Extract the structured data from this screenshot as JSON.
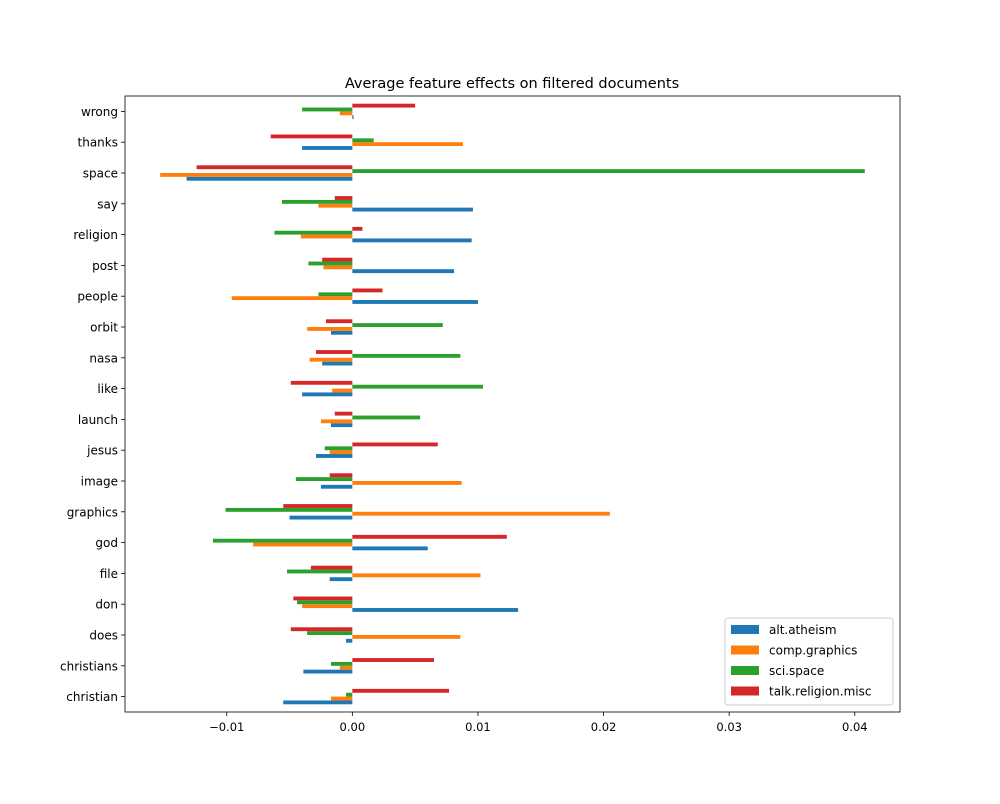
{
  "chart_data": {
    "type": "bar",
    "orientation": "horizontal",
    "title": "Average feature effects on filtered documents",
    "xlabel": "",
    "ylabel": "",
    "xlim": [
      -0.0181,
      0.0436
    ],
    "xticks": [
      -0.01,
      0.0,
      0.01,
      0.02,
      0.03,
      0.04
    ],
    "xtick_labels": [
      "−0.01",
      "0.00",
      "0.01",
      "0.02",
      "0.03",
      "0.04"
    ],
    "grid": false,
    "legend_position": "lower-right",
    "categories": [
      "christian",
      "christians",
      "does",
      "don",
      "file",
      "god",
      "graphics",
      "image",
      "jesus",
      "launch",
      "like",
      "nasa",
      "orbit",
      "people",
      "post",
      "religion",
      "say",
      "space",
      "thanks",
      "wrong"
    ],
    "series": [
      {
        "name": "alt.atheism",
        "color": "#1f77b4",
        "values": [
          -0.0055,
          -0.0039,
          -0.0005,
          0.0132,
          -0.0018,
          0.006,
          -0.005,
          -0.0025,
          -0.0029,
          -0.0017,
          -0.004,
          -0.0024,
          -0.0017,
          0.01,
          0.0081,
          0.0095,
          0.0096,
          -0.0132,
          -0.004,
          0.0001
        ]
      },
      {
        "name": "comp.graphics",
        "color": "#ff7f0e",
        "values": [
          -0.0017,
          -0.001,
          0.0086,
          -0.004,
          0.0102,
          -0.0079,
          0.0205,
          0.0087,
          -0.0018,
          -0.0025,
          -0.0016,
          -0.0034,
          -0.0036,
          -0.0096,
          -0.0023,
          -0.0041,
          -0.0027,
          -0.0153,
          0.0088,
          -0.001
        ]
      },
      {
        "name": "sci.space",
        "color": "#2ca02c",
        "values": [
          -0.0005,
          -0.0017,
          -0.0036,
          -0.0044,
          -0.0052,
          -0.0111,
          -0.0101,
          -0.0045,
          -0.0022,
          0.0054,
          0.0104,
          0.0086,
          0.0072,
          -0.0027,
          -0.0035,
          -0.0062,
          -0.0056,
          0.0408,
          0.0017,
          -0.004
        ]
      },
      {
        "name": "talk.religion.misc",
        "color": "#d62728",
        "values": [
          0.0077,
          0.0065,
          -0.0049,
          -0.0047,
          -0.0033,
          0.0123,
          -0.0055,
          -0.0018,
          0.0068,
          -0.0014,
          -0.0049,
          -0.0029,
          -0.0021,
          0.0024,
          -0.0024,
          0.0008,
          -0.0014,
          -0.0124,
          -0.0065,
          0.005
        ]
      }
    ]
  }
}
